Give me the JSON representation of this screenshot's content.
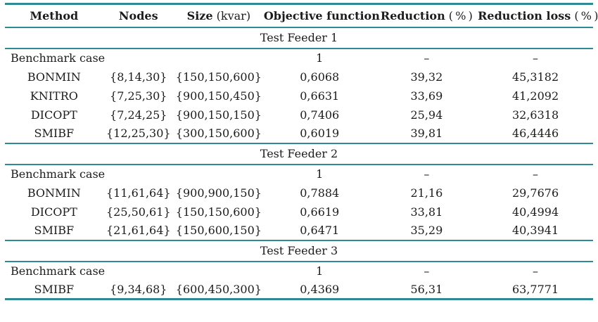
{
  "colors": {
    "rule": "#2e8b94",
    "text": "#1c1c1c"
  },
  "table": {
    "columns": [
      {
        "label": "Method",
        "suffix": ""
      },
      {
        "label": "Nodes",
        "suffix": ""
      },
      {
        "label": "Size",
        "suffix": " (kvar)"
      },
      {
        "label": "Objective function",
        "suffix": ""
      },
      {
        "label": "Reduction",
        "suffix": " ( % )"
      },
      {
        "label": "Reduction loss",
        "suffix": " ( % )"
      }
    ],
    "sections": [
      {
        "title": "Test Feeder 1",
        "rows": [
          {
            "method": "Benchmark case",
            "nodes": "",
            "size": "",
            "objective": "1",
            "reduction": "–",
            "reduction_loss": "–"
          },
          {
            "method": "BONMIN",
            "nodes": "{8,14,30}",
            "size": "{150,150,600}",
            "objective": "0,6068",
            "reduction": "39,32",
            "reduction_loss": "45,3182"
          },
          {
            "method": "KNITRO",
            "nodes": "{7,25,30}",
            "size": "{900,150,450}",
            "objective": "0,6631",
            "reduction": "33,69",
            "reduction_loss": "41,2092"
          },
          {
            "method": "DICOPT",
            "nodes": "{7,24,25}",
            "size": "{900,150,150}",
            "objective": "0,7406",
            "reduction": "25,94",
            "reduction_loss": "32,6318"
          },
          {
            "method": "SMIBF",
            "nodes": "{12,25,30}",
            "size": "{300,150,600}",
            "objective": "0,6019",
            "reduction": "39,81",
            "reduction_loss": "46,4446"
          }
        ]
      },
      {
        "title": "Test Feeder 2",
        "rows": [
          {
            "method": "Benchmark case",
            "nodes": "",
            "size": "",
            "objective": "1",
            "reduction": "–",
            "reduction_loss": "–"
          },
          {
            "method": "BONMIN",
            "nodes": "{11,61,64}",
            "size": "{900,900,150}",
            "objective": "0,7884",
            "reduction": "21,16",
            "reduction_loss": "29,7676"
          },
          {
            "method": "DICOPT",
            "nodes": "{25,50,61}",
            "size": "{150,150,600}",
            "objective": "0,6619",
            "reduction": "33,81",
            "reduction_loss": "40,4994"
          },
          {
            "method": "SMIBF",
            "nodes": "{21,61,64}",
            "size": "{150,600,150}",
            "objective": "0,6471",
            "reduction": "35,29",
            "reduction_loss": "40,3941"
          }
        ]
      },
      {
        "title": "Test Feeder 3",
        "rows": [
          {
            "method": "Benchmark case",
            "nodes": "",
            "size": "",
            "objective": "1",
            "reduction": "–",
            "reduction_loss": "–"
          },
          {
            "method": "SMIBF",
            "nodes": "{9,34,68}",
            "size": "{600,450,300}",
            "objective": "0,4369",
            "reduction": "56,31",
            "reduction_loss": "63,7771"
          }
        ]
      }
    ]
  }
}
